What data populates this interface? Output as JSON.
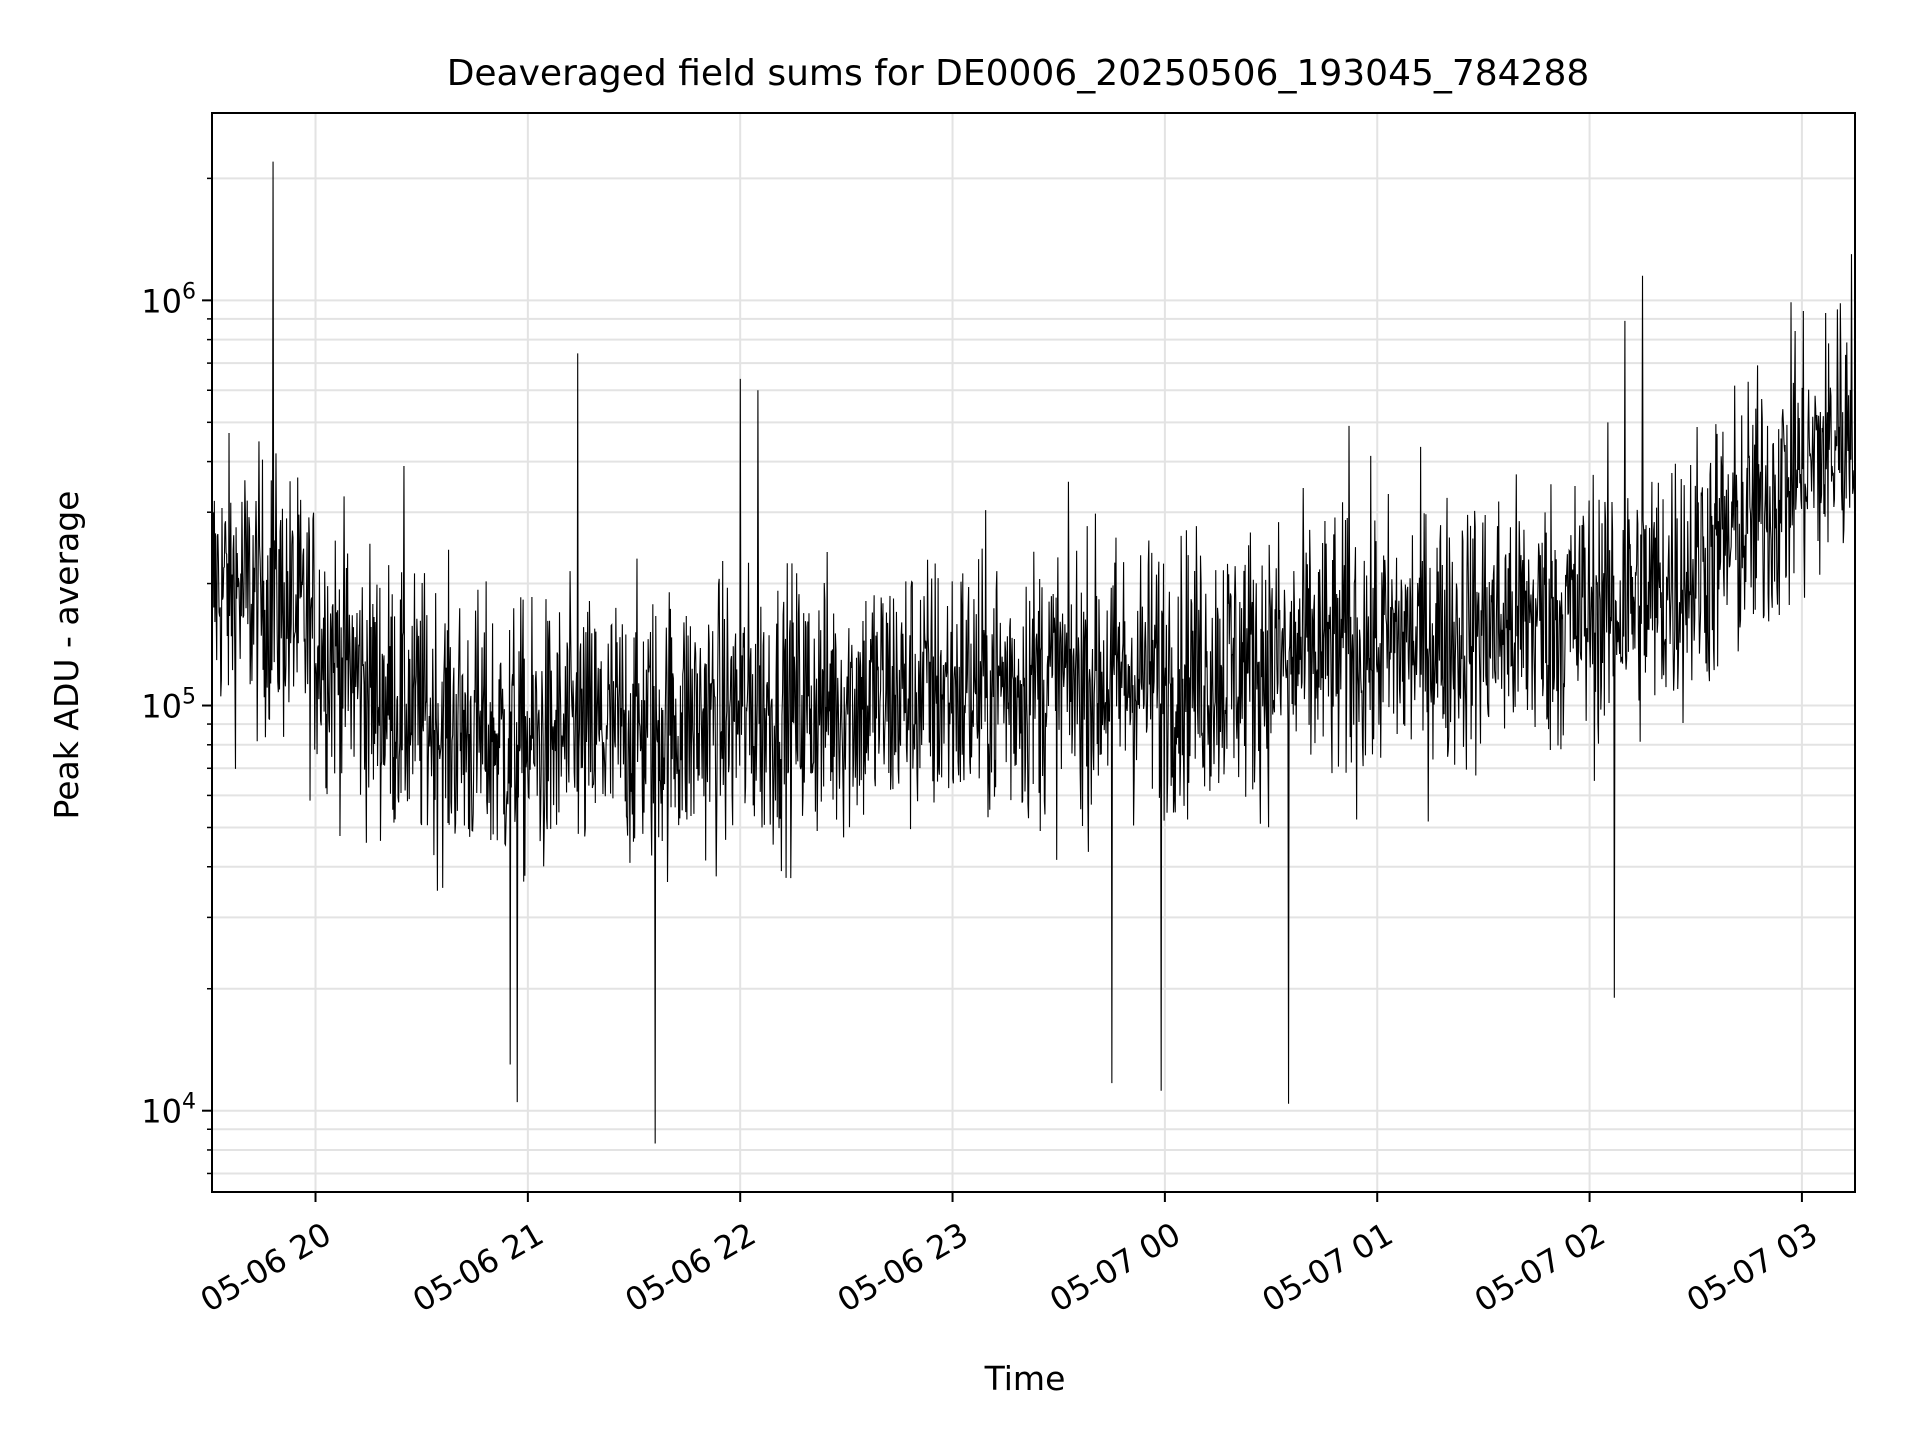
{
  "chart_data": {
    "type": "line",
    "title": "Deaveraged field sums for DE0006_20250506_193045_784288",
    "xlabel": "Time",
    "ylabel": "Peak ADU - average",
    "x_type": "datetime",
    "xlim": [
      "2025-05-06 19:30:45",
      "2025-05-07 03:15:00"
    ],
    "ylim": [
      6300,
      2900000
    ],
    "y_scale": "log",
    "grid": true,
    "x_ticks": [
      {
        "value": "2025-05-06 20:00",
        "label": "05-06 20"
      },
      {
        "value": "2025-05-06 21:00",
        "label": "05-06 21"
      },
      {
        "value": "2025-05-06 22:00",
        "label": "05-06 22"
      },
      {
        "value": "2025-05-06 23:00",
        "label": "05-06 23"
      },
      {
        "value": "2025-05-07 00:00",
        "label": "05-07 00"
      },
      {
        "value": "2025-05-07 01:00",
        "label": "05-07 01"
      },
      {
        "value": "2025-05-07 02:00",
        "label": "05-07 02"
      },
      {
        "value": "2025-05-07 03:00",
        "label": "05-07 03"
      }
    ],
    "y_ticks": [
      {
        "value": 10000,
        "base": "10",
        "exp": "4"
      },
      {
        "value": 100000,
        "base": "10",
        "exp": "5"
      },
      {
        "value": 1000000,
        "base": "10",
        "exp": "6"
      }
    ],
    "line_color": "#000000",
    "series": [
      {
        "x": [
          "2025-05-06 19:30:45",
          "2025-05-06 19:40",
          "2025-05-06 19:50",
          "2025-05-06 20:00",
          "2025-05-06 20:15",
          "2025-05-06 20:30",
          "2025-05-06 20:45",
          "2025-05-06 21:00",
          "2025-05-06 21:20",
          "2025-05-06 21:40",
          "2025-05-06 22:00",
          "2025-05-06 22:20",
          "2025-05-06 22:40",
          "2025-05-06 23:00",
          "2025-05-06 23:30",
          "2025-05-07 00:00",
          "2025-05-07 00:30",
          "2025-05-07 01:00",
          "2025-05-07 01:30",
          "2025-05-07 02:00",
          "2025-05-07 02:20",
          "2025-05-07 02:40",
          "2025-05-07 03:00",
          "2025-05-07 03:15"
        ],
        "values": [
          200000,
          190000,
          180000,
          150000,
          110000,
          95000,
          85000,
          80000,
          85000,
          90000,
          95000,
          100000,
          105000,
          110000,
          115000,
          120000,
          130000,
          140000,
          155000,
          170000,
          190000,
          260000,
          380000,
          480000
        ],
        "spikes": [
          {
            "x": "2025-05-06 19:48",
            "y": 2200000
          },
          {
            "x": "2025-05-06 20:25",
            "y": 390000
          },
          {
            "x": "2025-05-06 20:55",
            "y": 13000
          },
          {
            "x": "2025-05-06 20:57",
            "y": 10500
          },
          {
            "x": "2025-05-06 21:14",
            "y": 740000
          },
          {
            "x": "2025-05-06 21:36",
            "y": 8300
          },
          {
            "x": "2025-05-06 22:00",
            "y": 640000
          },
          {
            "x": "2025-05-06 22:05",
            "y": 600000
          },
          {
            "x": "2025-05-06 23:45",
            "y": 11700
          },
          {
            "x": "2025-05-06 23:59",
            "y": 11200
          },
          {
            "x": "2025-05-07 00:35",
            "y": 10400
          },
          {
            "x": "2025-05-07 00:52",
            "y": 490000
          },
          {
            "x": "2025-05-07 02:10",
            "y": 890000
          },
          {
            "x": "2025-05-07 02:15",
            "y": 1150000
          },
          {
            "x": "2025-05-07 02:07",
            "y": 19000
          },
          {
            "x": "2025-05-07 02:58",
            "y": 840000
          },
          {
            "x": "2025-05-07 03:10",
            "y": 950000
          },
          {
            "x": "2025-05-07 03:14",
            "y": 1300000
          }
        ]
      }
    ]
  }
}
